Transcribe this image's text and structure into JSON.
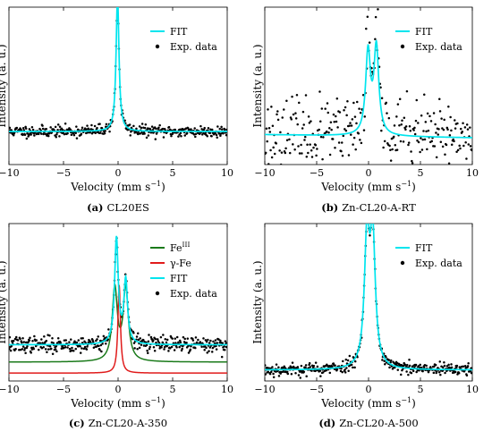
{
  "chart_data": [
    {
      "type": "scatter",
      "caption_label": "(a)",
      "caption_text": "CL20ES",
      "xlabel": "Velocity (mm s",
      "xlabel_sup": "−1",
      "xlabel_end": ")",
      "ylabel": "Intensity (a. u.)",
      "xlim": [
        -10,
        10
      ],
      "ylim": [
        0,
        1
      ],
      "xticks": [
        -10,
        -5,
        0,
        5,
        10
      ],
      "grid": false,
      "legend_position": "top-right",
      "series": [
        {
          "name": "FIT",
          "kind": "line",
          "color": "#00e5ee",
          "baseline": 0.21,
          "slope": 0.0,
          "peaks": [
            {
              "x0": -0.05,
              "amp": 0.86,
              "w": 0.16
            }
          ]
        },
        {
          "name": "Exp. data",
          "kind": "points",
          "color": "#000000",
          "noise": 0.018,
          "n_points": 400,
          "seed": 11
        }
      ]
    },
    {
      "type": "scatter",
      "caption_label": "(b)",
      "caption_text": "Zn-CL20-A-RT",
      "xlabel": "Velocity (mm s",
      "xlabel_sup": "−1",
      "xlabel_end": ")",
      "ylabel": "Intensity (a. u.)",
      "xlim": [
        -10,
        10
      ],
      "ylim": [
        0,
        1
      ],
      "xticks": [
        -10,
        -5,
        0,
        5,
        10
      ],
      "grid": false,
      "legend_position": "top-right",
      "series": [
        {
          "name": "FIT",
          "kind": "line",
          "color": "#00e5ee",
          "baseline": 0.18,
          "slope": -0.001,
          "peaks": [
            {
              "x0": -0.05,
              "amp": 0.52,
              "w": 0.28
            },
            {
              "x0": 0.75,
              "amp": 0.55,
              "w": 0.28
            }
          ]
        },
        {
          "name": "Exp. data",
          "kind": "points",
          "color": "#000000",
          "noise": 0.11,
          "n_points": 300,
          "seed": 23
        }
      ]
    },
    {
      "type": "scatter",
      "caption_label": "(c)",
      "caption_text": "Zn-CL20-A-350",
      "xlabel": "Velocity (mm s",
      "xlabel_sup": "−1",
      "xlabel_end": ")",
      "ylabel": "Intensity (a. u.)",
      "xlim": [
        -10,
        10
      ],
      "ylim": [
        0,
        1
      ],
      "xticks": [
        -10,
        -5,
        0,
        5,
        10
      ],
      "grid": false,
      "legend_position": "top-right",
      "series": [
        {
          "name": "Fe",
          "name_sup": "III",
          "kind": "line",
          "color": "#1a7a1a",
          "baseline": 0.12,
          "slope": 0.0,
          "peaks": [
            {
              "x0": -0.3,
              "amp": 0.46,
              "w": 0.28
            },
            {
              "x0": 0.7,
              "amp": 0.46,
              "w": 0.28
            }
          ]
        },
        {
          "name": "γ-Fe",
          "kind": "line",
          "color": "#e01b1b",
          "baseline": 0.05,
          "slope": 0.0,
          "peaks": [
            {
              "x0": 0.1,
              "amp": 0.56,
              "w": 0.14
            }
          ]
        },
        {
          "name": "FIT",
          "kind": "line",
          "color": "#00e5ee",
          "baseline": 0.23,
          "slope": 0.0,
          "peaks": [
            {
              "x0": -0.15,
              "amp": 0.67,
              "w": 0.2
            },
            {
              "x0": 0.7,
              "amp": 0.4,
              "w": 0.2
            }
          ]
        },
        {
          "name": "Exp. data",
          "kind": "points",
          "color": "#000000",
          "noise": 0.025,
          "n_points": 400,
          "seed": 37
        }
      ]
    },
    {
      "type": "scatter",
      "caption_label": "(d)",
      "caption_text": "Zn-CL20-A-500",
      "xlabel": "Velocity (mm s",
      "xlabel_sup": "−1",
      "xlabel_end": ")",
      "ylabel": "Intensity (a. u.)",
      "xlim": [
        -10,
        10
      ],
      "ylim": [
        0,
        1
      ],
      "xticks": [
        -10,
        -5,
        0,
        5,
        10
      ],
      "grid": false,
      "legend_position": "top-right",
      "series": [
        {
          "name": "FIT",
          "kind": "line",
          "color": "#00e5ee",
          "baseline": 0.07,
          "slope": 0.0,
          "peaks": [
            {
              "x0": -0.15,
              "amp": 0.8,
              "w": 0.3
            },
            {
              "x0": 0.4,
              "amp": 0.8,
              "w": 0.3
            }
          ]
        },
        {
          "name": "Exp. data",
          "kind": "points",
          "color": "#000000",
          "noise": 0.02,
          "n_points": 400,
          "seed": 53
        }
      ]
    }
  ]
}
